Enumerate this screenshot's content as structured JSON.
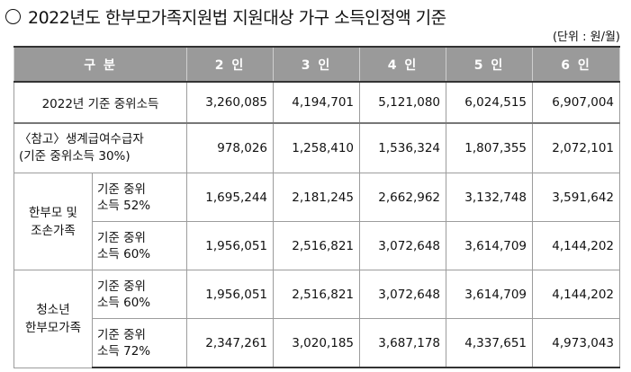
{
  "title": "2022년도 한부모가족지원법 지원대상 가구 소득인정액 기준",
  "unit": "(단위 : 원/월)",
  "header": {
    "category": "구 분",
    "cols": [
      "2 인",
      "3 인",
      "4 인",
      "5 인",
      "6 인"
    ]
  },
  "rows": {
    "median": {
      "label": "2022년 기준 중위소득",
      "values": [
        "3,260,085",
        "4,194,701",
        "5,121,080",
        "6,024,515",
        "6,907,004"
      ]
    },
    "ref": {
      "label_line1": "〈참고〉생계급여수급자",
      "label_line2": "(기준 중위소득 30%)",
      "values": [
        "978,026",
        "1,258,410",
        "1,536,324",
        "1,807,355",
        "2,072,101"
      ]
    },
    "group1": {
      "label_line1": "한부모 및",
      "label_line2": "조손가족",
      "sub1": {
        "line1": "기준 중위",
        "line2": "소득 52%",
        "values": [
          "1,695,244",
          "2,181,245",
          "2,662,962",
          "3,132,748",
          "3,591,642"
        ]
      },
      "sub2": {
        "line1": "기준 중위",
        "line2": "소득 60%",
        "values": [
          "1,956,051",
          "2,516,821",
          "3,072,648",
          "3,614,709",
          "4,144,202"
        ]
      }
    },
    "group2": {
      "label_line1": "청소년",
      "label_line2": "한부모가족",
      "sub1": {
        "line1": "기준 중위",
        "line2": "소득 60%",
        "values": [
          "1,956,051",
          "2,516,821",
          "3,072,648",
          "3,614,709",
          "4,144,202"
        ]
      },
      "sub2": {
        "line1": "기준 중위",
        "line2": "소득 72%",
        "values": [
          "2,347,261",
          "3,020,185",
          "3,687,178",
          "4,337,651",
          "4,973,043"
        ]
      }
    }
  }
}
